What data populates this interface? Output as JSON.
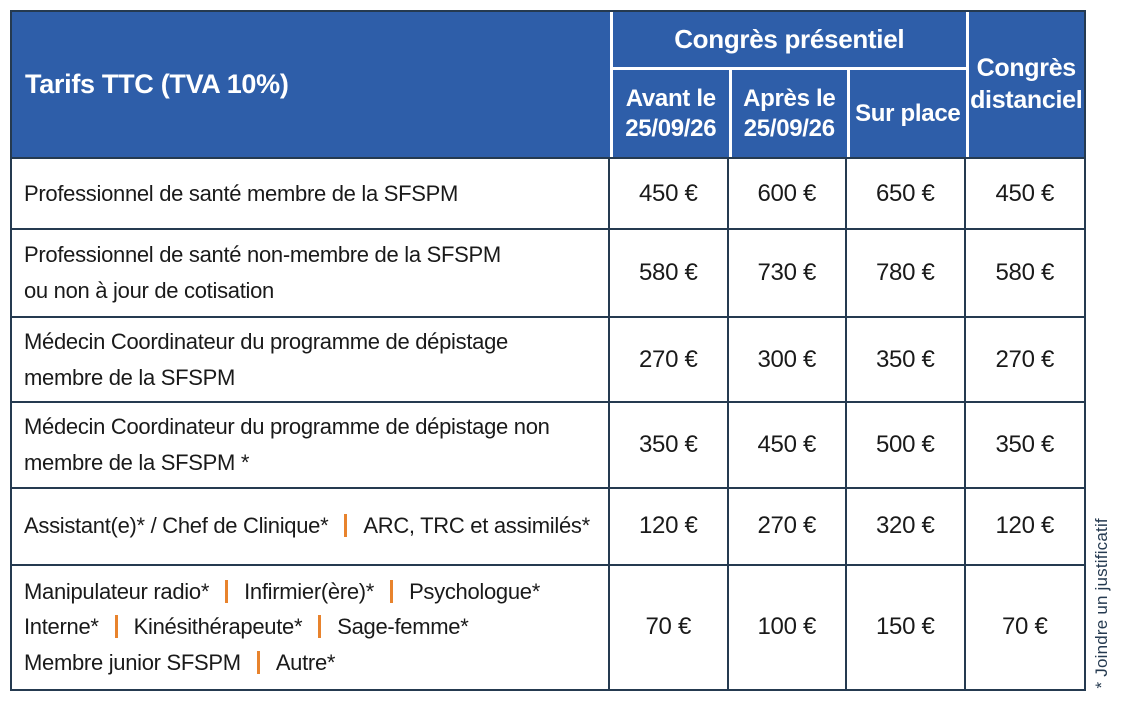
{
  "header": {
    "title": "Tarifs TTC (TVA 10%)",
    "group_label": "Congrès présentiel",
    "presential_columns": [
      {
        "line1": "Avant le",
        "line2": "25/09/26"
      },
      {
        "line1": "Après le",
        "line2": "25/09/26"
      },
      {
        "line1": "Sur place",
        "line2": ""
      }
    ],
    "remote": {
      "line1": "Congrès",
      "line2": "distanciel"
    }
  },
  "rows": [
    {
      "label_lines": [
        [
          "Professionnel de santé membre de la SFSPM"
        ]
      ],
      "prices": [
        "450 €",
        "600 €",
        "650 €",
        "450 €"
      ]
    },
    {
      "label_lines": [
        [
          "Professionnel de santé non-membre de la SFSPM"
        ],
        [
          "ou non à jour de cotisation"
        ]
      ],
      "prices": [
        "580 €",
        "730 €",
        "780 €",
        "580 €"
      ]
    },
    {
      "label_lines": [
        [
          "Médecin Coordinateur du programme de dépistage"
        ],
        [
          "membre de la SFSPM"
        ]
      ],
      "prices": [
        "270 €",
        "300 €",
        "350 €",
        "270 €"
      ]
    },
    {
      "label_lines": [
        [
          "Médecin Coordinateur du programme de dépistage non"
        ],
        [
          "membre de la SFSPM *"
        ]
      ],
      "prices": [
        "350 €",
        "450 €",
        "500 €",
        "350 €"
      ]
    },
    {
      "label_lines": [
        [
          "Assistant(e)* / Chef de Clinique*",
          "ARC, TRC et assimilés*"
        ]
      ],
      "prices": [
        "120 €",
        "270 €",
        "320 €",
        "120 €"
      ]
    },
    {
      "label_lines": [
        [
          "Manipulateur radio*",
          "Infirmier(ère)*",
          "Psychologue*"
        ],
        [
          "Interne*",
          "Kinésithérapeute*",
          "Sage-femme*"
        ],
        [
          "Membre junior SFSPM",
          "Autre*"
        ]
      ],
      "prices": [
        "70 €",
        "100 €",
        "150 €",
        "70 €"
      ]
    }
  ],
  "footnote": "* Joindre un justificatif",
  "colors": {
    "header_blue": "#2e5ea9",
    "border_navy": "#253a50",
    "separator_orange": "#e8832d"
  }
}
